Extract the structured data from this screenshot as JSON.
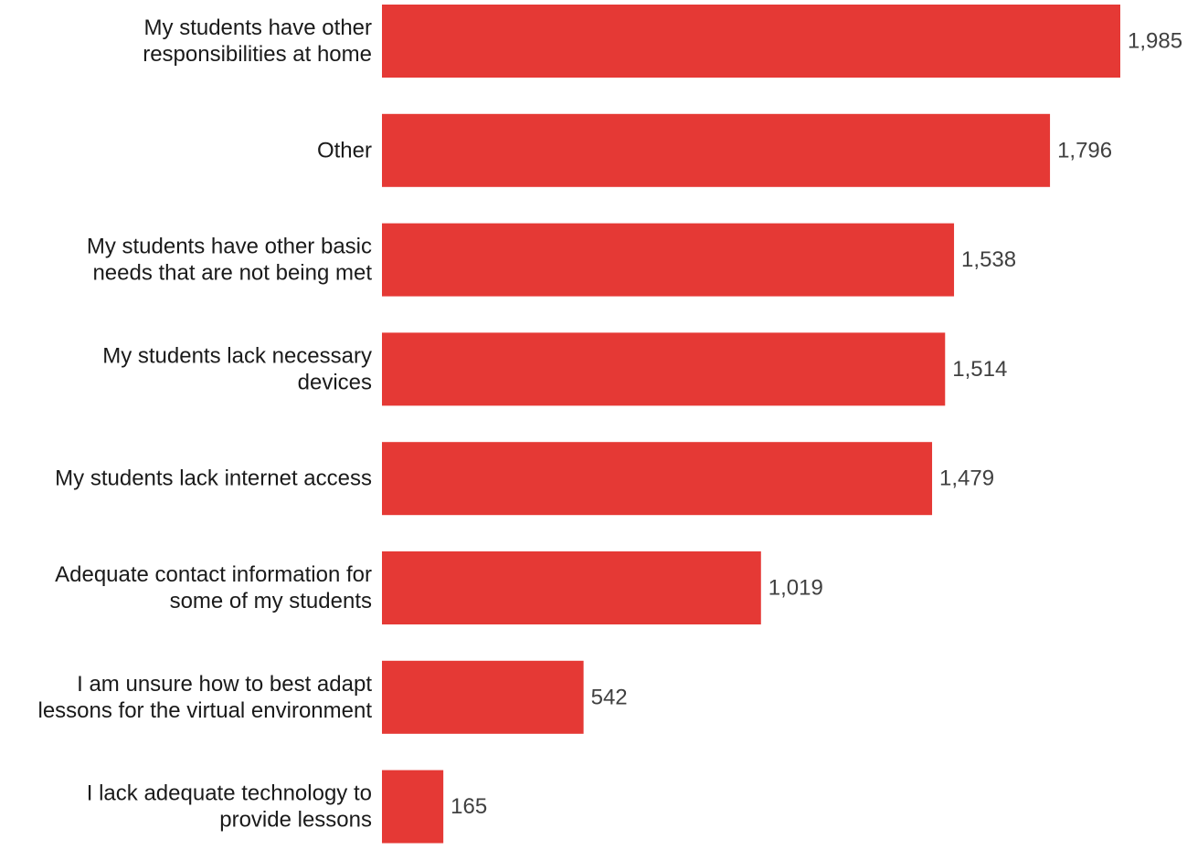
{
  "chart_data": {
    "type": "bar",
    "orientation": "horizontal",
    "title": "",
    "xlabel": "",
    "ylabel": "",
    "grid": false,
    "xlim": [
      0,
      1985
    ],
    "bar_color": "#e53935",
    "categories": [
      [
        "My students have other",
        "responsibilities at home"
      ],
      [
        "Other"
      ],
      [
        "My students have other basic",
        "needs that are not being met"
      ],
      [
        "My students lack necessary",
        "devices"
      ],
      [
        "My students lack internet access"
      ],
      [
        "Adequate contact information for",
        "some of my students"
      ],
      [
        "I am unsure how to best adapt",
        "lessons for the virtual environment"
      ],
      [
        "I lack adequate technology to",
        "provide lessons"
      ]
    ],
    "values": [
      1985,
      1796,
      1538,
      1514,
      1479,
      1019,
      542,
      165
    ],
    "value_labels": [
      "1,985",
      "1,796",
      "1,538",
      "1,514",
      "1,479",
      "1,019",
      "542",
      "165"
    ]
  }
}
